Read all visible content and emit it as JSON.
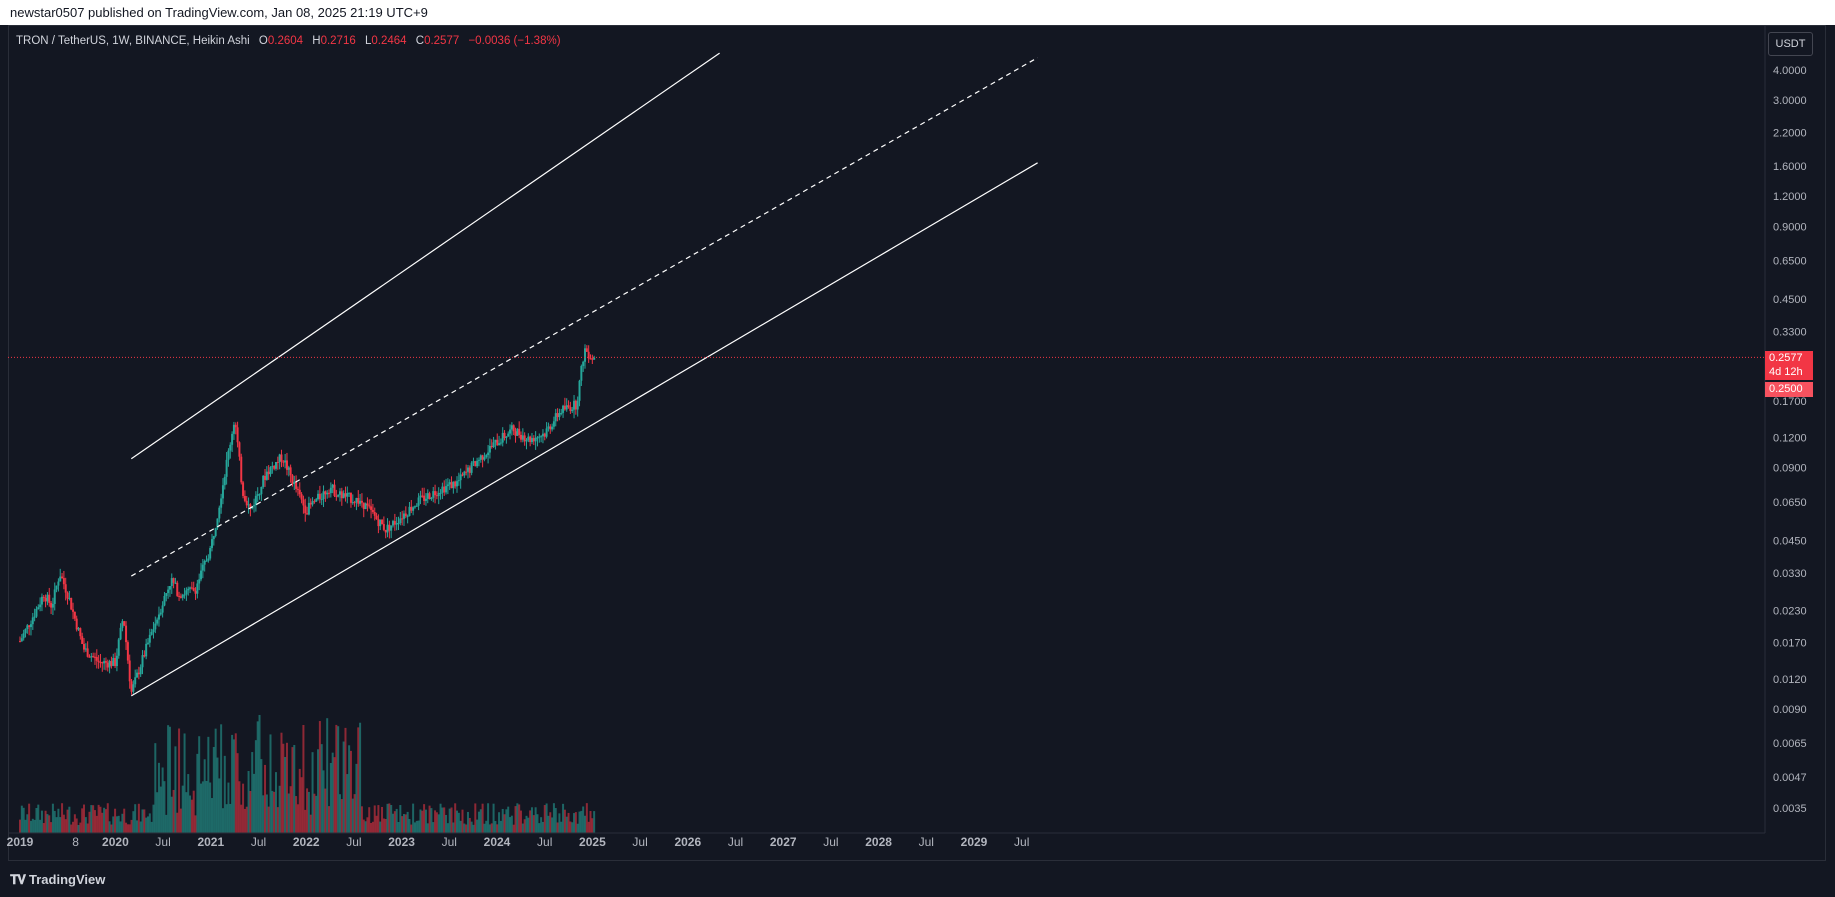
{
  "header": {
    "published": "newstar0507 published on TradingView.com, Jan 08, 2025 21:19 UTC+9"
  },
  "legend": {
    "symbol": "TRON / TetherUS, 1W, BINANCE, Heikin Ashi",
    "o_label": "O",
    "o_value": "0.2604",
    "h_label": "H",
    "h_value": "0.2716",
    "l_label": "L",
    "l_value": "0.2464",
    "c_label": "C",
    "c_value": "0.2577",
    "change": "−0.0036 (−1.38%)"
  },
  "price_axis": {
    "unit_button": "USDT"
  },
  "price_tags": {
    "last": "0.2577",
    "countdown": "4d 12h",
    "level": "0.2500"
  },
  "footer": {
    "brand": "TradingView",
    "brand_icon": "tradingview-logo-icon"
  },
  "colors": {
    "up": "#26a69a",
    "down": "#f23645",
    "background": "#131722",
    "grid": "#1e222d",
    "channel": "#ffffff"
  },
  "chart_data": {
    "type": "candlestick",
    "title": "TRON / TetherUS, 1W, BINANCE, Heikin Ashi",
    "scale": "log",
    "y_tick_labels": [
      "4.0000",
      "3.0000",
      "2.2000",
      "1.6000",
      "1.2000",
      "0.9000",
      "0.6500",
      "0.4500",
      "0.3300",
      "0.2577",
      "0.1700",
      "0.1200",
      "0.0900",
      "0.0650",
      "0.0450",
      "0.0330",
      "0.0230",
      "0.0170",
      "0.0120",
      "0.0090",
      "0.0065",
      "0.0047",
      "0.0035"
    ],
    "x_tick_labels": [
      "2019",
      "8",
      "2020",
      "Jul",
      "2021",
      "Jul",
      "2022",
      "Jul",
      "2023",
      "Jul",
      "2024",
      "Jul",
      "2025",
      "Jul",
      "2026",
      "Jul",
      "2027",
      "Jul",
      "2028",
      "Jul",
      "2029",
      "Jul"
    ],
    "x_range": [
      "2019-01",
      "2029-10"
    ],
    "last_price": 0.2577,
    "series": [
      {
        "name": "price path (approx. closes)",
        "points": [
          [
            "2019-01",
            0.0172
          ],
          [
            "2019-03",
            0.023
          ],
          [
            "2019-04",
            0.027
          ],
          [
            "2019-05",
            0.024
          ],
          [
            "2019-06",
            0.033
          ],
          [
            "2019-07",
            0.027
          ],
          [
            "2019-09",
            0.016
          ],
          [
            "2019-11",
            0.014
          ],
          [
            "2020-01",
            0.014
          ],
          [
            "2020-02",
            0.022
          ],
          [
            "2020-03",
            0.0105
          ],
          [
            "2020-05",
            0.0165
          ],
          [
            "2020-08",
            0.031
          ],
          [
            "2020-09",
            0.027
          ],
          [
            "2020-11",
            0.028
          ],
          [
            "2021-01",
            0.042
          ],
          [
            "2021-02",
            0.062
          ],
          [
            "2021-04",
            0.145
          ],
          [
            "2021-05",
            0.072
          ],
          [
            "2021-06",
            0.06
          ],
          [
            "2021-08",
            0.086
          ],
          [
            "2021-10",
            0.1
          ],
          [
            "2021-12",
            0.07
          ],
          [
            "2022-01",
            0.06
          ],
          [
            "2022-04",
            0.075
          ],
          [
            "2022-05",
            0.07
          ],
          [
            "2022-08",
            0.065
          ],
          [
            "2022-11",
            0.05
          ],
          [
            "2022-12",
            0.053
          ],
          [
            "2023-03",
            0.065
          ],
          [
            "2023-06",
            0.074
          ],
          [
            "2023-08",
            0.078
          ],
          [
            "2023-11",
            0.1
          ],
          [
            "2024-01",
            0.115
          ],
          [
            "2024-03",
            0.13
          ],
          [
            "2024-05",
            0.118
          ],
          [
            "2024-07",
            0.125
          ],
          [
            "2024-09",
            0.155
          ],
          [
            "2024-11",
            0.165
          ],
          [
            "2024-12",
            0.28
          ],
          [
            "2025-01",
            0.2577
          ]
        ]
      }
    ],
    "volume_series_note": "volume histogram along bottom",
    "channel": {
      "upper": [
        [
          "2020-03",
          0.098
        ],
        [
          "2026-05",
          4.7
        ]
      ],
      "middle_dashed": [
        [
          "2020-03",
          0.032
        ],
        [
          "2029-09",
          4.5
        ]
      ],
      "lower": [
        [
          "2020-03",
          0.0102
        ],
        [
          "2029-09",
          1.65
        ]
      ]
    }
  }
}
